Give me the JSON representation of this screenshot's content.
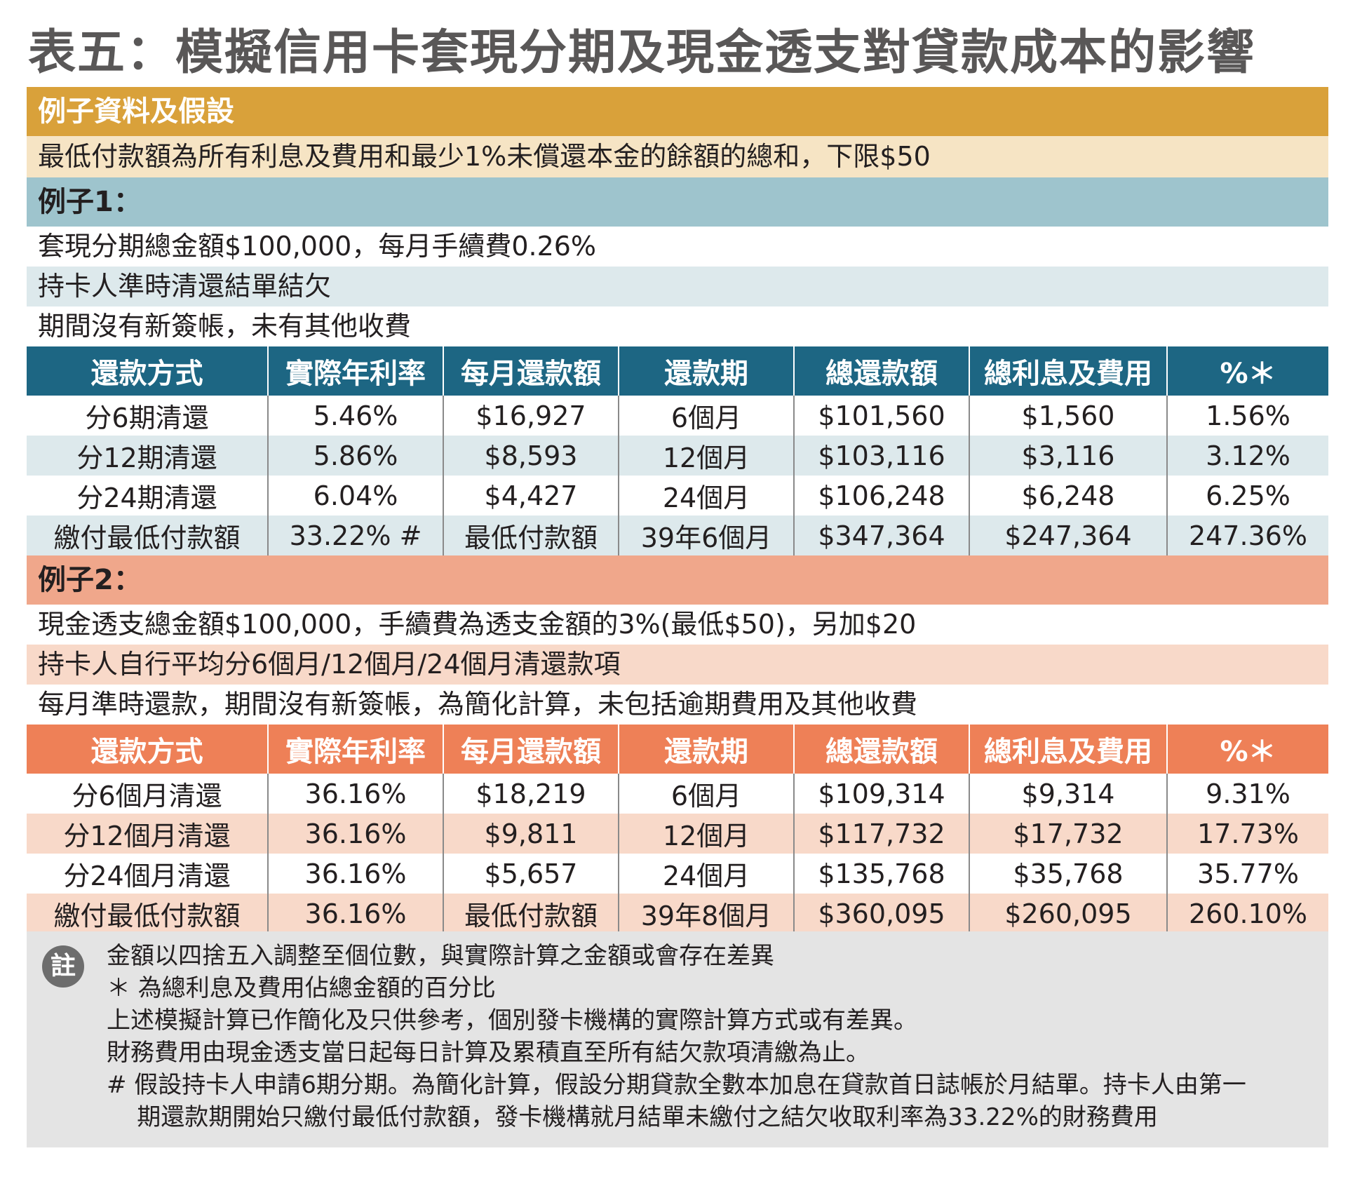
{
  "title": "表五：模擬信用卡套現分期及現金透支對貸款成本的影響",
  "colors": {
    "gold": "#d9a13a",
    "cream": "#f6e4c4",
    "teal_light": "#9ec4cd",
    "teal_dark": "#1d6683",
    "blue_grey": "#dde9ec",
    "salmon": "#f0a78b",
    "orange": "#ee8057",
    "peach": "#f8d9c9",
    "note_bg": "#e4e4e4"
  },
  "assumptions": {
    "header": "例子資料及假設",
    "text": "最低付款額為所有利息及費用和最少1%未償還本金的餘額的總和，下限$50"
  },
  "example1": {
    "header": "例子1：",
    "lines": [
      "套現分期總金額$100,000，每月手續費0.26%",
      "持卡人準時清還結單結欠",
      "期間沒有新簽帳，未有其他收費"
    ],
    "columns": [
      "還款方式",
      "實際年利率",
      "每月還款額",
      "還款期",
      "總還款額",
      "總利息及費用",
      "%＊"
    ],
    "rows": [
      [
        "分6期清還",
        "5.46%",
        "$16,927",
        "6個月",
        "$101,560",
        "$1,560",
        "1.56%"
      ],
      [
        "分12期清還",
        "5.86%",
        "$8,593",
        "12個月",
        "$103,116",
        "$3,116",
        "3.12%"
      ],
      [
        "分24期清還",
        "6.04%",
        "$4,427",
        "24個月",
        "$106,248",
        "$6,248",
        "6.25%"
      ],
      [
        "繳付最低付款額",
        "33.22% #",
        "最低付款額",
        "39年6個月",
        "$347,364",
        "$247,364",
        "247.36%"
      ]
    ]
  },
  "example2": {
    "header": "例子2：",
    "lines": [
      "現金透支總金額$100,000，手續費為透支金額的3%(最低$50)，另加$20",
      "持卡人自行平均分6個月/12個月/24個月清還款項",
      "每月準時還款，期間沒有新簽帳，為簡化計算，未包括逾期費用及其他收費"
    ],
    "columns": [
      "還款方式",
      "實際年利率",
      "每月還款額",
      "還款期",
      "總還款額",
      "總利息及費用",
      "%＊"
    ],
    "rows": [
      [
        "分6個月清還",
        "36.16%",
        "$18,219",
        "6個月",
        "$109,314",
        "$9,314",
        "9.31%"
      ],
      [
        "分12個月清還",
        "36.16%",
        "$9,811",
        "12個月",
        "$117,732",
        "$17,732",
        "17.73%"
      ],
      [
        "分24個月清還",
        "36.16%",
        "$5,657",
        "24個月",
        "$135,768",
        "$35,768",
        "35.77%"
      ],
      [
        "繳付最低付款額",
        "36.16%",
        "最低付款額",
        "39年8個月",
        "$360,095",
        "$260,095",
        "260.10%"
      ]
    ]
  },
  "notes": {
    "badge": "註",
    "lines": [
      "金額以四捨五入調整至個位數，與實際計算之金額或會存在差異",
      "＊ 為總利息及費用佔總金額的百分比",
      "上述模擬計算已作簡化及只供參考，個別發卡機構的實際計算方式或有差異。",
      "財務費用由現金透支當日起每日計算及累積直至所有結欠款項清繳為止。",
      "#  假設持卡人申請6期分期。為簡化計算，假設分期貸款全數本加息在貸款首日誌帳於月結單。持卡人由第一",
      "    期還款期開始只繳付最低付款額，發卡機構就月結單未繳付之結欠收取利率為33.22%的財務費用"
    ]
  }
}
